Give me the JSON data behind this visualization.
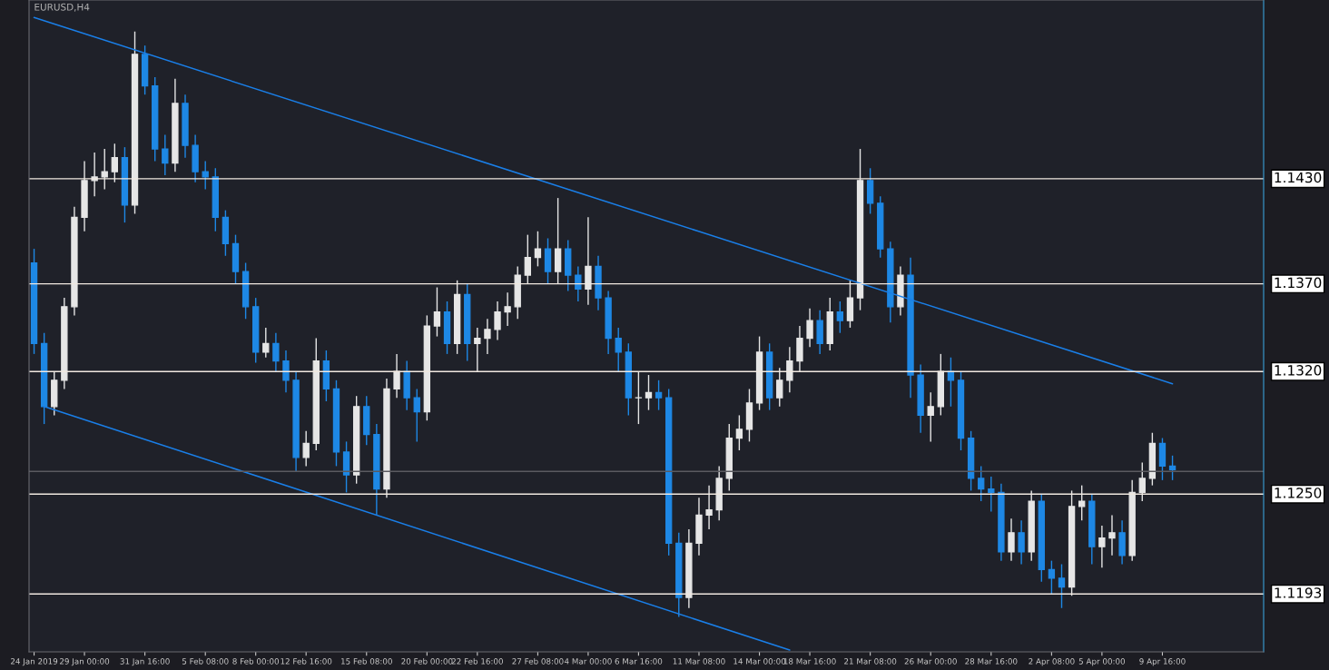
{
  "chart_data": {
    "type": "candlestick",
    "title": "EURUSD,H4",
    "colors": [
      "#1e88e5",
      "#1e88e5",
      "#e6e6e6",
      "#e6e6e6",
      "#e6e6e6",
      "#e6e6e6",
      "#e6e6e6",
      "#e6e6e6",
      "#e6e6e6",
      "#1e88e5",
      "#e6e6e6",
      "#1e88e5",
      "#1e88e5",
      "#1e88e5",
      "#e6e6e6",
      "#1e88e5",
      "#1e88e5",
      "#1e88e5",
      "#1e88e5",
      "#1e88e5",
      "#1e88e5",
      "#1e88e5",
      "#1e88e5",
      "#e6e6e6",
      "#1e88e5",
      "#1e88e5",
      "#1e88e5",
      "#e6e6e6",
      "#e6e6e6",
      "#1e88e5",
      "#1e88e5",
      "#1e88e5",
      "#e6e6e6",
      "#1e88e5",
      "#1e88e5",
      "#e6e6e6",
      "#e6e6e6",
      "#1e88e5",
      "#1e88e5",
      "#e6e6e6",
      "#e6e6e6",
      "#1e88e5",
      "#e6e6e6",
      "#1e88e5",
      "#e6e6e6",
      "#e6e6e6",
      "#e6e6e6",
      "#e6e6e6",
      "#e6e6e6",
      "#e6e6e6",
      "#e6e6e6",
      "#1e88e5",
      "#e6e6e6",
      "#1e88e5",
      "#1e88e5",
      "#e6e6e6",
      "#1e88e5",
      "#1e88e5",
      "#1e88e5",
      "#1e88e5",
      "#e6e6e6",
      "#e6e6e6",
      "#1e88e5",
      "#1e88e5",
      "#1e88e5",
      "#e6e6e6",
      "#e6e6e6",
      "#e6e6e6",
      "#e6e6e6",
      "#e6e6e6",
      "#e6e6e6",
      "#e6e6e6",
      "#e6e6e6",
      "#1e88e5",
      "#e6e6e6",
      "#e6e6e6",
      "#e6e6e6",
      "#e6e6e6",
      "#1e88e5",
      "#e6e6e6",
      "#1e88e5",
      "#e6e6e6",
      "#e6e6e6",
      "#1e88e5",
      "#1e88e5",
      "#1e88e5",
      "#e6e6e6",
      "#1e88e5",
      "#1e88e5",
      "#e6e6e6",
      "#e6e6e6",
      "#1e88e5",
      "#1e88e5",
      "#1e88e5",
      "#1e88e5",
      "#1e88e5",
      "#1e88e5",
      "#e6e6e6",
      "#1e88e5",
      "#e6e6e6",
      "#1e88e5",
      "#1e88e5",
      "#1e88e5",
      "#e6e6e6",
      "#e6e6e6",
      "#1e88e5",
      "#e6e6e6",
      "#e6e6e6",
      "#1e88e5",
      "#e6e6e6",
      "#e6e6e6",
      "#e6e6e6",
      "#1e88e5",
      "#1e88e5"
    ],
    "categories": [
      "24 Jan 2019",
      null,
      null,
      null,
      null,
      "29 Jan 00:00",
      null,
      null,
      null,
      null,
      null,
      "31 Jan 16:00",
      null,
      null,
      null,
      null,
      null,
      "5 Feb 08:00",
      null,
      null,
      null,
      null,
      "8 Feb 00:00",
      null,
      null,
      null,
      null,
      "12 Feb 16:00",
      null,
      null,
      null,
      null,
      null,
      "15 Feb 08:00",
      null,
      null,
      null,
      null,
      null,
      "20 Feb 00:00",
      null,
      null,
      null,
      null,
      "22 Feb 16:00",
      null,
      null,
      null,
      null,
      null,
      "27 Feb 08:00",
      null,
      null,
      null,
      null,
      "4 Mar 00:00",
      null,
      null,
      null,
      null,
      "6 Mar 16:00",
      null,
      null,
      null,
      null,
      null,
      "11 Mar 08:00",
      null,
      null,
      null,
      null,
      null,
      "14 Mar 00:00",
      null,
      null,
      null,
      null,
      "18 Mar 16:00",
      null,
      null,
      null,
      null,
      null,
      "21 Mar 08:00",
      null,
      null,
      null,
      null,
      null,
      "26 Mar 00:00",
      null,
      null,
      null,
      null,
      null,
      "28 Mar 16:00",
      null,
      null,
      null,
      null,
      null,
      "2 Apr 08:00",
      null,
      null,
      null,
      null,
      "5 Apr 00:00",
      null,
      null,
      null,
      null,
      null,
      "9 Apr 16:00",
      null
    ],
    "ohlc": [
      [
        1.1382,
        1.139,
        1.133,
        1.1336
      ],
      [
        1.1336,
        1.1342,
        1.129,
        1.13
      ],
      [
        1.13,
        1.132,
        1.1295,
        1.1315
      ],
      [
        1.1315,
        1.1362,
        1.131,
        1.1357
      ],
      [
        1.1357,
        1.1414,
        1.1352,
        1.1408
      ],
      [
        1.1408,
        1.144,
        1.14,
        1.1429
      ],
      [
        1.1429,
        1.1445,
        1.142,
        1.1431
      ],
      [
        1.1431,
        1.1447,
        1.1424,
        1.1434
      ],
      [
        1.1434,
        1.145,
        1.1428,
        1.1442
      ],
      [
        1.1442,
        1.1448,
        1.1405,
        1.1415
      ],
      [
        1.1415,
        1.1514,
        1.141,
        1.1501
      ],
      [
        1.1501,
        1.1506,
        1.1478,
        1.1483
      ],
      [
        1.1483,
        1.1488,
        1.144,
        1.1447
      ],
      [
        1.1447,
        1.1455,
        1.1432,
        1.1439
      ],
      [
        1.1439,
        1.1487,
        1.1434,
        1.1473
      ],
      [
        1.1473,
        1.1478,
        1.1442,
        1.1449
      ],
      [
        1.1449,
        1.1455,
        1.1428,
        1.1434
      ],
      [
        1.1434,
        1.144,
        1.1424,
        1.1431
      ],
      [
        1.1431,
        1.1436,
        1.14,
        1.1408
      ],
      [
        1.1408,
        1.1412,
        1.1386,
        1.1393
      ],
      [
        1.1393,
        1.1398,
        1.137,
        1.1377
      ],
      [
        1.1377,
        1.1382,
        1.135,
        1.1357
      ],
      [
        1.1357,
        1.1362,
        1.1325,
        1.1331
      ],
      [
        1.1331,
        1.1345,
        1.1328,
        1.1336
      ],
      [
        1.1336,
        1.1342,
        1.132,
        1.1326
      ],
      [
        1.1326,
        1.1332,
        1.1308,
        1.1315
      ],
      [
        1.1315,
        1.132,
        1.1263,
        1.1271
      ],
      [
        1.1271,
        1.1286,
        1.1266,
        1.1279
      ],
      [
        1.1279,
        1.1339,
        1.1275,
        1.1326
      ],
      [
        1.1326,
        1.1332,
        1.1303,
        1.131
      ],
      [
        1.131,
        1.1315,
        1.1266,
        1.1274
      ],
      [
        1.1274,
        1.128,
        1.1251,
        1.1261
      ],
      [
        1.1261,
        1.1306,
        1.1256,
        1.13
      ],
      [
        1.13,
        1.1306,
        1.1278,
        1.1284
      ],
      [
        1.1284,
        1.129,
        1.1238,
        1.1253
      ],
      [
        1.1253,
        1.1316,
        1.1248,
        1.131
      ],
      [
        1.131,
        1.133,
        1.1305,
        1.132
      ],
      [
        1.132,
        1.1326,
        1.1298,
        1.1305
      ],
      [
        1.1305,
        1.131,
        1.128,
        1.1297
      ],
      [
        1.1297,
        1.1352,
        1.1292,
        1.1346
      ],
      [
        1.1346,
        1.1368,
        1.134,
        1.1354
      ],
      [
        1.1354,
        1.136,
        1.133,
        1.1336
      ],
      [
        1.1336,
        1.1372,
        1.133,
        1.1364
      ],
      [
        1.1364,
        1.137,
        1.1326,
        1.1336
      ],
      [
        1.1336,
        1.1345,
        1.132,
        1.1339
      ],
      [
        1.1339,
        1.135,
        1.133,
        1.1344
      ],
      [
        1.1344,
        1.136,
        1.1338,
        1.1354
      ],
      [
        1.1354,
        1.1365,
        1.1346,
        1.1357
      ],
      [
        1.1357,
        1.138,
        1.135,
        1.1375
      ],
      [
        1.1375,
        1.1398,
        1.137,
        1.1385
      ],
      [
        1.1385,
        1.14,
        1.138,
        1.139
      ],
      [
        1.139,
        1.1396,
        1.137,
        1.1377
      ],
      [
        1.1377,
        1.1419,
        1.137,
        1.139
      ],
      [
        1.139,
        1.1395,
        1.1366,
        1.1375
      ],
      [
        1.1375,
        1.138,
        1.136,
        1.1367
      ],
      [
        1.1367,
        1.1408,
        1.1358,
        1.138
      ],
      [
        1.138,
        1.1386,
        1.1355,
        1.1362
      ],
      [
        1.1362,
        1.1366,
        1.133,
        1.1339
      ],
      [
        1.1339,
        1.1345,
        1.132,
        1.1331
      ],
      [
        1.1331,
        1.1336,
        1.1295,
        1.1305
      ],
      [
        1.1305,
        1.132,
        1.129,
        1.1305
      ],
      [
        1.1305,
        1.1318,
        1.1298,
        1.1308
      ],
      [
        1.1308,
        1.1315,
        1.1298,
        1.1305
      ],
      [
        1.1305,
        1.131,
        1.1215,
        1.1222
      ],
      [
        1.1222,
        1.1228,
        1.118,
        1.1191
      ],
      [
        1.1191,
        1.123,
        1.1185,
        1.1222
      ],
      [
        1.1222,
        1.1248,
        1.1215,
        1.1238
      ],
      [
        1.1238,
        1.1255,
        1.123,
        1.1241
      ],
      [
        1.1241,
        1.1266,
        1.1235,
        1.1259
      ],
      [
        1.1259,
        1.129,
        1.1252,
        1.1282
      ],
      [
        1.1282,
        1.1295,
        1.1275,
        1.1287
      ],
      [
        1.1287,
        1.131,
        1.128,
        1.1302
      ],
      [
        1.1302,
        1.134,
        1.1298,
        1.1331
      ],
      [
        1.1331,
        1.1336,
        1.1298,
        1.1305
      ],
      [
        1.1305,
        1.1322,
        1.13,
        1.1315
      ],
      [
        1.1315,
        1.1334,
        1.1308,
        1.1326
      ],
      [
        1.1326,
        1.1346,
        1.132,
        1.1339
      ],
      [
        1.1339,
        1.1356,
        1.1334,
        1.1349
      ],
      [
        1.1349,
        1.1355,
        1.133,
        1.1336
      ],
      [
        1.1336,
        1.1362,
        1.1332,
        1.1354
      ],
      [
        1.1354,
        1.136,
        1.1342,
        1.1349
      ],
      [
        1.1349,
        1.1372,
        1.1345,
        1.1362
      ],
      [
        1.1362,
        1.1447,
        1.1355,
        1.1429
      ],
      [
        1.1429,
        1.1436,
        1.141,
        1.1416
      ],
      [
        1.1416,
        1.142,
        1.1385,
        1.139
      ],
      [
        1.139,
        1.1394,
        1.1348,
        1.1357
      ],
      [
        1.1357,
        1.138,
        1.1352,
        1.1375
      ],
      [
        1.1375,
        1.1385,
        1.1305,
        1.1318
      ],
      [
        1.1318,
        1.1324,
        1.1285,
        1.1295
      ],
      [
        1.1295,
        1.1308,
        1.128,
        1.13
      ],
      [
        1.13,
        1.133,
        1.1295,
        1.132
      ],
      [
        1.132,
        1.1328,
        1.13,
        1.1315
      ],
      [
        1.1315,
        1.132,
        1.1275,
        1.1282
      ],
      [
        1.1282,
        1.1286,
        1.1252,
        1.1259
      ],
      [
        1.1259,
        1.1266,
        1.1246,
        1.1253
      ],
      [
        1.1253,
        1.126,
        1.124,
        1.1251
      ],
      [
        1.1251,
        1.1256,
        1.1212,
        1.1217
      ],
      [
        1.1217,
        1.1236,
        1.1212,
        1.1228
      ],
      [
        1.1228,
        1.1235,
        1.121,
        1.1217
      ],
      [
        1.1217,
        1.1252,
        1.1212,
        1.1246
      ],
      [
        1.1246,
        1.125,
        1.12,
        1.1207
      ],
      [
        1.1207,
        1.1212,
        1.1193,
        1.1202
      ],
      [
        1.1202,
        1.121,
        1.1185,
        1.1197
      ],
      [
        1.1197,
        1.1252,
        1.1192,
        1.1243
      ],
      [
        1.1243,
        1.1255,
        1.1235,
        1.1246
      ],
      [
        1.1246,
        1.125,
        1.121,
        1.122
      ],
      [
        1.122,
        1.1232,
        1.1208,
        1.1225
      ],
      [
        1.1225,
        1.1238,
        1.1215,
        1.1228
      ],
      [
        1.1228,
        1.1235,
        1.121,
        1.1215
      ],
      [
        1.1215,
        1.1258,
        1.1212,
        1.1251
      ],
      [
        1.1251,
        1.1268,
        1.1246,
        1.1259
      ],
      [
        1.1259,
        1.1285,
        1.1255,
        1.1279
      ],
      [
        1.1279,
        1.1282,
        1.1258,
        1.1266
      ],
      [
        1.1266,
        1.1272,
        1.1258,
        1.1264
      ]
    ],
    "series": [
      {
        "type": "line",
        "color": "#1a7fe8",
        "values": [
          1.1522,
          null,
          null,
          null,
          null,
          null,
          null,
          null,
          null,
          null,
          null,
          null,
          null,
          null,
          null,
          null,
          null,
          null,
          null,
          null,
          null,
          null,
          null,
          null,
          null,
          null,
          null,
          null,
          null,
          null,
          null,
          null,
          null,
          null,
          null,
          null,
          null,
          null,
          null,
          null,
          null,
          null,
          null,
          null,
          null,
          null,
          null,
          null,
          null,
          null,
          null,
          null,
          null,
          null,
          null,
          null,
          null,
          null,
          null,
          null,
          null,
          null,
          null,
          null,
          null,
          null,
          null,
          null,
          null,
          null,
          null,
          null,
          null,
          null,
          null,
          null,
          null,
          null,
          null,
          null,
          null,
          null,
          null,
          null,
          null,
          null,
          null,
          null,
          null,
          null,
          null,
          null,
          null,
          null,
          null,
          null,
          null,
          null,
          null,
          null,
          null,
          null,
          null,
          null,
          null,
          null,
          null,
          null,
          null,
          null,
          null,
          null,
          null,
          1.1313
        ]
      },
      {
        "type": "line",
        "color": "#1a7fe8",
        "values": [
          null,
          1.13,
          null,
          null,
          null,
          null,
          null,
          null,
          null,
          null,
          null,
          null,
          null,
          null,
          null,
          null,
          null,
          null,
          null,
          null,
          null,
          null,
          null,
          null,
          null,
          null,
          null,
          null,
          null,
          null,
          null,
          null,
          null,
          null,
          null,
          null,
          null,
          null,
          null,
          null,
          null,
          null,
          null,
          null,
          null,
          null,
          null,
          null,
          null,
          null,
          null,
          null,
          null,
          null,
          null,
          null,
          null,
          null,
          null,
          null,
          null,
          null,
          null,
          null,
          null,
          null,
          null,
          null,
          null,
          null,
          null,
          null,
          null,
          null,
          null,
          1.1161,
          null,
          null,
          null,
          null,
          null,
          null,
          null,
          null,
          null,
          null,
          null,
          null,
          null,
          null,
          null,
          null,
          null,
          null,
          null,
          null,
          null,
          null,
          null,
          null,
          null,
          null,
          null,
          null,
          null,
          null,
          null,
          null,
          null,
          null,
          null,
          null,
          null,
          null
        ]
      }
    ],
    "ylim": [
      1.116,
      1.1532
    ],
    "tick_labels": "x",
    "ref_lines": [
      {
        "axis": "y",
        "value": 1.143,
        "label": "1.1430",
        "color": "#f0e8e0"
      },
      {
        "axis": "y",
        "value": 1.137,
        "label": "1.1370",
        "color": "#f0e8e0"
      },
      {
        "axis": "y",
        "value": 1.132,
        "label": "1.1320",
        "color": "#f0e8e0"
      },
      {
        "axis": "y",
        "value": 1.125,
        "label": "1.1250",
        "color": "#f0e8e0"
      },
      {
        "axis": "y",
        "value": 1.1193,
        "label": "1.1193",
        "color": "#f0e8e0"
      },
      {
        "axis": "y",
        "value": 1.1263,
        "color": "#5a5a60"
      }
    ]
  }
}
